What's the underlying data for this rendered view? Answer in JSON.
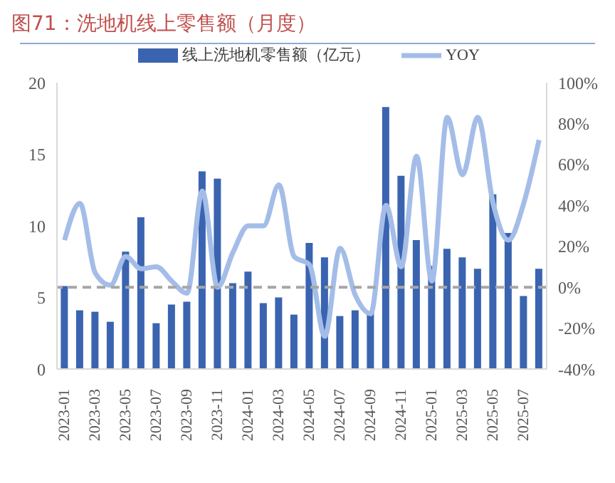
{
  "chart_data": {
    "type": "bar",
    "title": "图71：洗地机线上零售额（月度）",
    "categories": [
      "2023-01",
      null,
      "2023-03",
      null,
      "2023-05",
      null,
      "2023-07",
      null,
      "2023-09",
      null,
      "2023-11",
      null,
      "2024-01",
      null,
      "2024-03",
      null,
      "2024-05",
      null,
      "2024-07",
      null,
      "2024-09",
      null,
      "2024-11",
      null,
      "2025-01",
      null,
      "2025-03",
      null,
      "2025-05",
      null,
      "2025-07",
      null
    ],
    "series": [
      {
        "name": "线上洗地机零售额（亿元）",
        "color": "#3a64b0",
        "values": [
          5.8,
          4.1,
          4.0,
          3.3,
          8.2,
          10.6,
          3.2,
          4.5,
          4.7,
          13.8,
          13.3,
          6.0,
          6.8,
          4.6,
          5.0,
          3.8,
          8.8,
          7.8,
          3.7,
          4.1,
          4.0,
          18.3,
          13.5,
          9.0,
          7.2,
          8.4,
          7.8,
          7.0,
          12.2,
          9.5,
          5.1,
          7.0
        ]
      },
      {
        "name": "YOY",
        "type": "line",
        "axis": "y2",
        "color": "#a4bde8",
        "values": [
          23,
          41,
          7,
          1,
          15,
          9,
          10,
          3,
          -3,
          47,
          0,
          17,
          30,
          30,
          50,
          15,
          11,
          -24,
          19,
          -4,
          -13,
          40,
          10,
          64,
          3,
          83,
          55,
          83,
          41,
          23,
          41,
          72
        ]
      }
    ],
    "ylim": [
      0,
      20
    ],
    "yticks": [
      0,
      5,
      10,
      15,
      20
    ],
    "y2lim": [
      -40,
      100
    ],
    "y2ticks": [
      {
        "value": -40,
        "label": "-40%"
      },
      {
        "value": -20,
        "label": "-20%"
      },
      {
        "value": 0,
        "label": "0%"
      },
      {
        "value": 20,
        "label": "20%"
      },
      {
        "value": 40,
        "label": "40%"
      },
      {
        "value": 60,
        "label": "60%"
      },
      {
        "value": 80,
        "label": "80%"
      },
      {
        "value": 100,
        "label": "100%"
      }
    ],
    "ref_lines": [
      {
        "axis": "y2",
        "value": 0,
        "color": "#a6a6a6",
        "line_style": "dashed"
      }
    ],
    "legend": "top",
    "grid": false,
    "marker": "none",
    "line_style": "solid"
  }
}
